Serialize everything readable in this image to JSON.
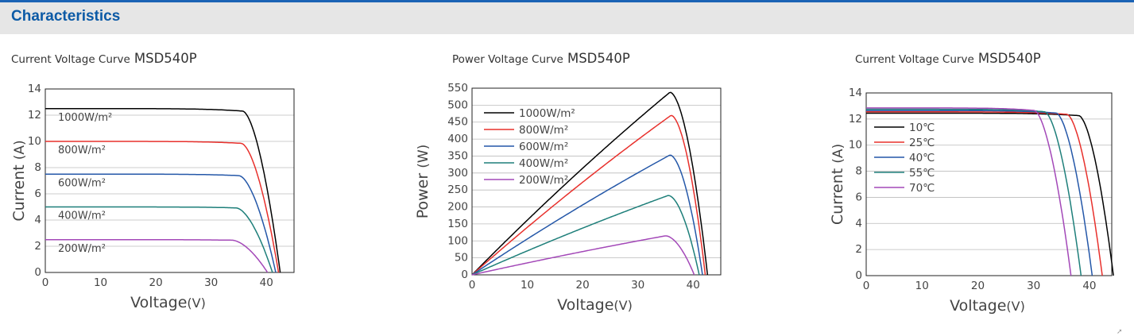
{
  "header": {
    "title": "Characteristics"
  },
  "corner_icon": "arrow-icon",
  "chart_data": [
    {
      "type": "line",
      "title": "Current Voltage Curve",
      "model": "MSD540P",
      "xlabel": "Voltage",
      "xunit": "(V)",
      "ylabel": "Current",
      "yunit": "(A)",
      "xlim": [
        0,
        45
      ],
      "ylim": [
        0,
        14
      ],
      "xticks": [
        "0",
        "10",
        "20",
        "30",
        "40"
      ],
      "yticks": [
        "0",
        "2",
        "4",
        "6",
        "8",
        "10",
        "12",
        "14"
      ],
      "grid": true,
      "legend": "inline-left",
      "series": [
        {
          "name": "1000W/m²",
          "color": "#000000",
          "isc": 12.5,
          "voc": 42.5,
          "knee": 0.84
        },
        {
          "name": "800W/m²",
          "color": "#e8302c",
          "isc": 10.0,
          "voc": 42.2,
          "knee": 0.84
        },
        {
          "name": "600W/m²",
          "color": "#2457a8",
          "isc": 7.5,
          "voc": 41.7,
          "knee": 0.84
        },
        {
          "name": "400W/m²",
          "color": "#1e7f7a",
          "isc": 5.0,
          "voc": 41.1,
          "knee": 0.84
        },
        {
          "name": "200W/m²",
          "color": "#a348b8",
          "isc": 2.5,
          "voc": 40.2,
          "knee": 0.84
        }
      ]
    },
    {
      "type": "line",
      "title": "Power Voltage Curve",
      "model": "MSD540P",
      "xlabel": "Voltage",
      "xunit": "(V)",
      "ylabel": "Power",
      "yunit": "(W)",
      "xlim": [
        0,
        45
      ],
      "ylim": [
        0,
        550
      ],
      "xticks": [
        "0",
        "10",
        "20",
        "30",
        "40"
      ],
      "yticks": [
        "0",
        "50",
        "100",
        "150",
        "200",
        "250",
        "300",
        "350",
        "400",
        "450",
        "500",
        "550"
      ],
      "grid": true,
      "legend": "top-left",
      "series": [
        {
          "name": "1000W/m²",
          "color": "#000000",
          "pmax": 538,
          "vmp": 35.8,
          "voc": 42.6
        },
        {
          "name": "800W/m²",
          "color": "#e8302c",
          "pmax": 470,
          "vmp": 36.0,
          "voc": 42.2
        },
        {
          "name": "600W/m²",
          "color": "#2457a8",
          "pmax": 353,
          "vmp": 35.8,
          "voc": 41.7
        },
        {
          "name": "400W/m²",
          "color": "#1e7f7a",
          "pmax": 234,
          "vmp": 35.5,
          "voc": 41.1
        },
        {
          "name": "200W/m²",
          "color": "#a348b8",
          "pmax": 115,
          "vmp": 35.0,
          "voc": 40.2
        }
      ]
    },
    {
      "type": "line",
      "title": "Current Voltage Curve",
      "model": "MSD540P",
      "xlabel": "Voltage",
      "xunit": "(V)",
      "ylabel": "Current",
      "yunit": "(A)",
      "xlim": [
        0,
        44
      ],
      "ylim": [
        0,
        14
      ],
      "xticks": [
        "0",
        "10",
        "20",
        "30",
        "40"
      ],
      "yticks": [
        "0",
        "2",
        "4",
        "6",
        "8",
        "10",
        "12",
        "14"
      ],
      "grid": true,
      "legend": "top-left",
      "series": [
        {
          "name": "10℃",
          "color": "#000000",
          "isc": 12.45,
          "voc": 44.3,
          "knee": 0.86
        },
        {
          "name": "25℃",
          "color": "#e8302c",
          "isc": 12.55,
          "voc": 42.3,
          "knee": 0.85
        },
        {
          "name": "40℃",
          "color": "#2457a8",
          "isc": 12.65,
          "voc": 40.5,
          "knee": 0.84
        },
        {
          "name": "55℃",
          "color": "#1e7f7a",
          "isc": 12.75,
          "voc": 38.5,
          "knee": 0.83
        },
        {
          "name": "70℃",
          "color": "#a348b8",
          "isc": 12.85,
          "voc": 36.7,
          "knee": 0.82
        }
      ]
    }
  ]
}
